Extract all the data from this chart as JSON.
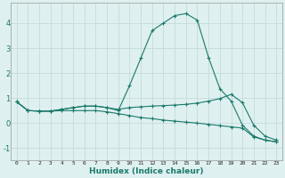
{
  "xlabel": "Humidex (Indice chaleur)",
  "background_color": "#dff0f0",
  "grid_color": "#c8dede",
  "line_color": "#1a7a6a",
  "ylim": [
    -1.5,
    4.8
  ],
  "yticks": [
    -1,
    0,
    1,
    2,
    3,
    4
  ],
  "xlim": [
    -0.5,
    23.5
  ],
  "s1": [
    0.85,
    0.5,
    0.48,
    0.48,
    0.5,
    0.5,
    0.5,
    0.5,
    0.45,
    0.38,
    0.3,
    0.22,
    0.18,
    0.12,
    0.08,
    0.04,
    0.0,
    -0.05,
    -0.1,
    -0.15,
    -0.2,
    -0.55,
    -0.68,
    -0.75
  ],
  "s2": [
    0.85,
    0.5,
    0.48,
    0.48,
    0.55,
    0.62,
    0.68,
    0.68,
    0.62,
    0.55,
    0.62,
    0.65,
    0.68,
    0.7,
    0.72,
    0.75,
    0.8,
    0.88,
    0.98,
    1.15,
    0.82,
    -0.08,
    -0.52,
    -0.68
  ],
  "s3": [
    0.85,
    0.5,
    0.48,
    0.48,
    0.55,
    0.62,
    0.68,
    0.68,
    0.62,
    0.5,
    1.5,
    2.6,
    3.7,
    4.0,
    4.3,
    4.38,
    4.12,
    2.62,
    1.38,
    0.88,
    -0.08,
    -0.52,
    -0.68,
    -0.75
  ]
}
